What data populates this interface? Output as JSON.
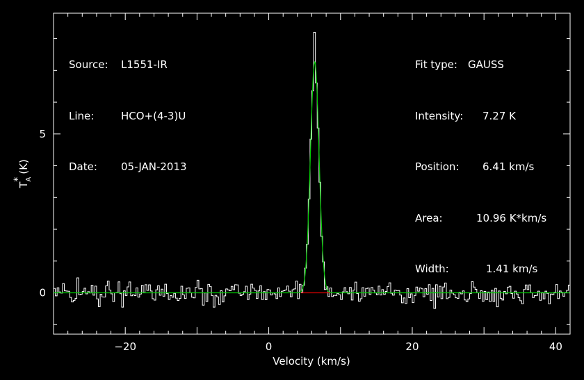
{
  "header_left": {
    "source_label": "Source:",
    "source_value": "L1551-IR",
    "line_label": "Line:",
    "line_value": "HCO+(4-3)U",
    "date_label": "Date:",
    "date_value": "05-JAN-2013"
  },
  "header_right": {
    "fit_label": "Fit type:",
    "fit_value": "GAUSS",
    "intensity_label": "Intensity:",
    "intensity_value": "7.27 K",
    "position_label": "Position:",
    "position_value": "6.41 km/s",
    "area_label": "Area:",
    "area_value": "10.96 K*km/s",
    "width_label": "Width:",
    "width_value": "1.41 km/s"
  },
  "colors": {
    "background": "#000000",
    "spectrum": "#ffffff",
    "fit": "#00cc00",
    "baseline": "#dd0000"
  },
  "chart_data": {
    "type": "line",
    "xlabel": "Velocity (km/s)",
    "ylabel": "T_A* (K)",
    "xlim": [
      -30,
      42
    ],
    "ylim": [
      -1.3,
      8.8
    ],
    "x_ticks": [
      -20,
      0,
      20,
      40
    ],
    "x_tick_labels": [
      "−20",
      "0",
      "20",
      "40"
    ],
    "y_ticks": [
      0,
      5
    ],
    "y_tick_labels": [
      "0",
      "5"
    ],
    "grid": false,
    "fit": {
      "model": "gaussian",
      "peak": 7.27,
      "center": 6.41,
      "fwhm": 1.41,
      "baseline": 0.0
    },
    "noise_rms": 0.17,
    "peak_observed": 8.2,
    "channel_width": 0.25,
    "series": [
      {
        "name": "spectrum",
        "style": "histogram"
      },
      {
        "name": "gaussian-fit",
        "style": "line"
      },
      {
        "name": "baseline",
        "style": "line",
        "x_range": [
          4.5,
          8.5
        ]
      }
    ]
  }
}
